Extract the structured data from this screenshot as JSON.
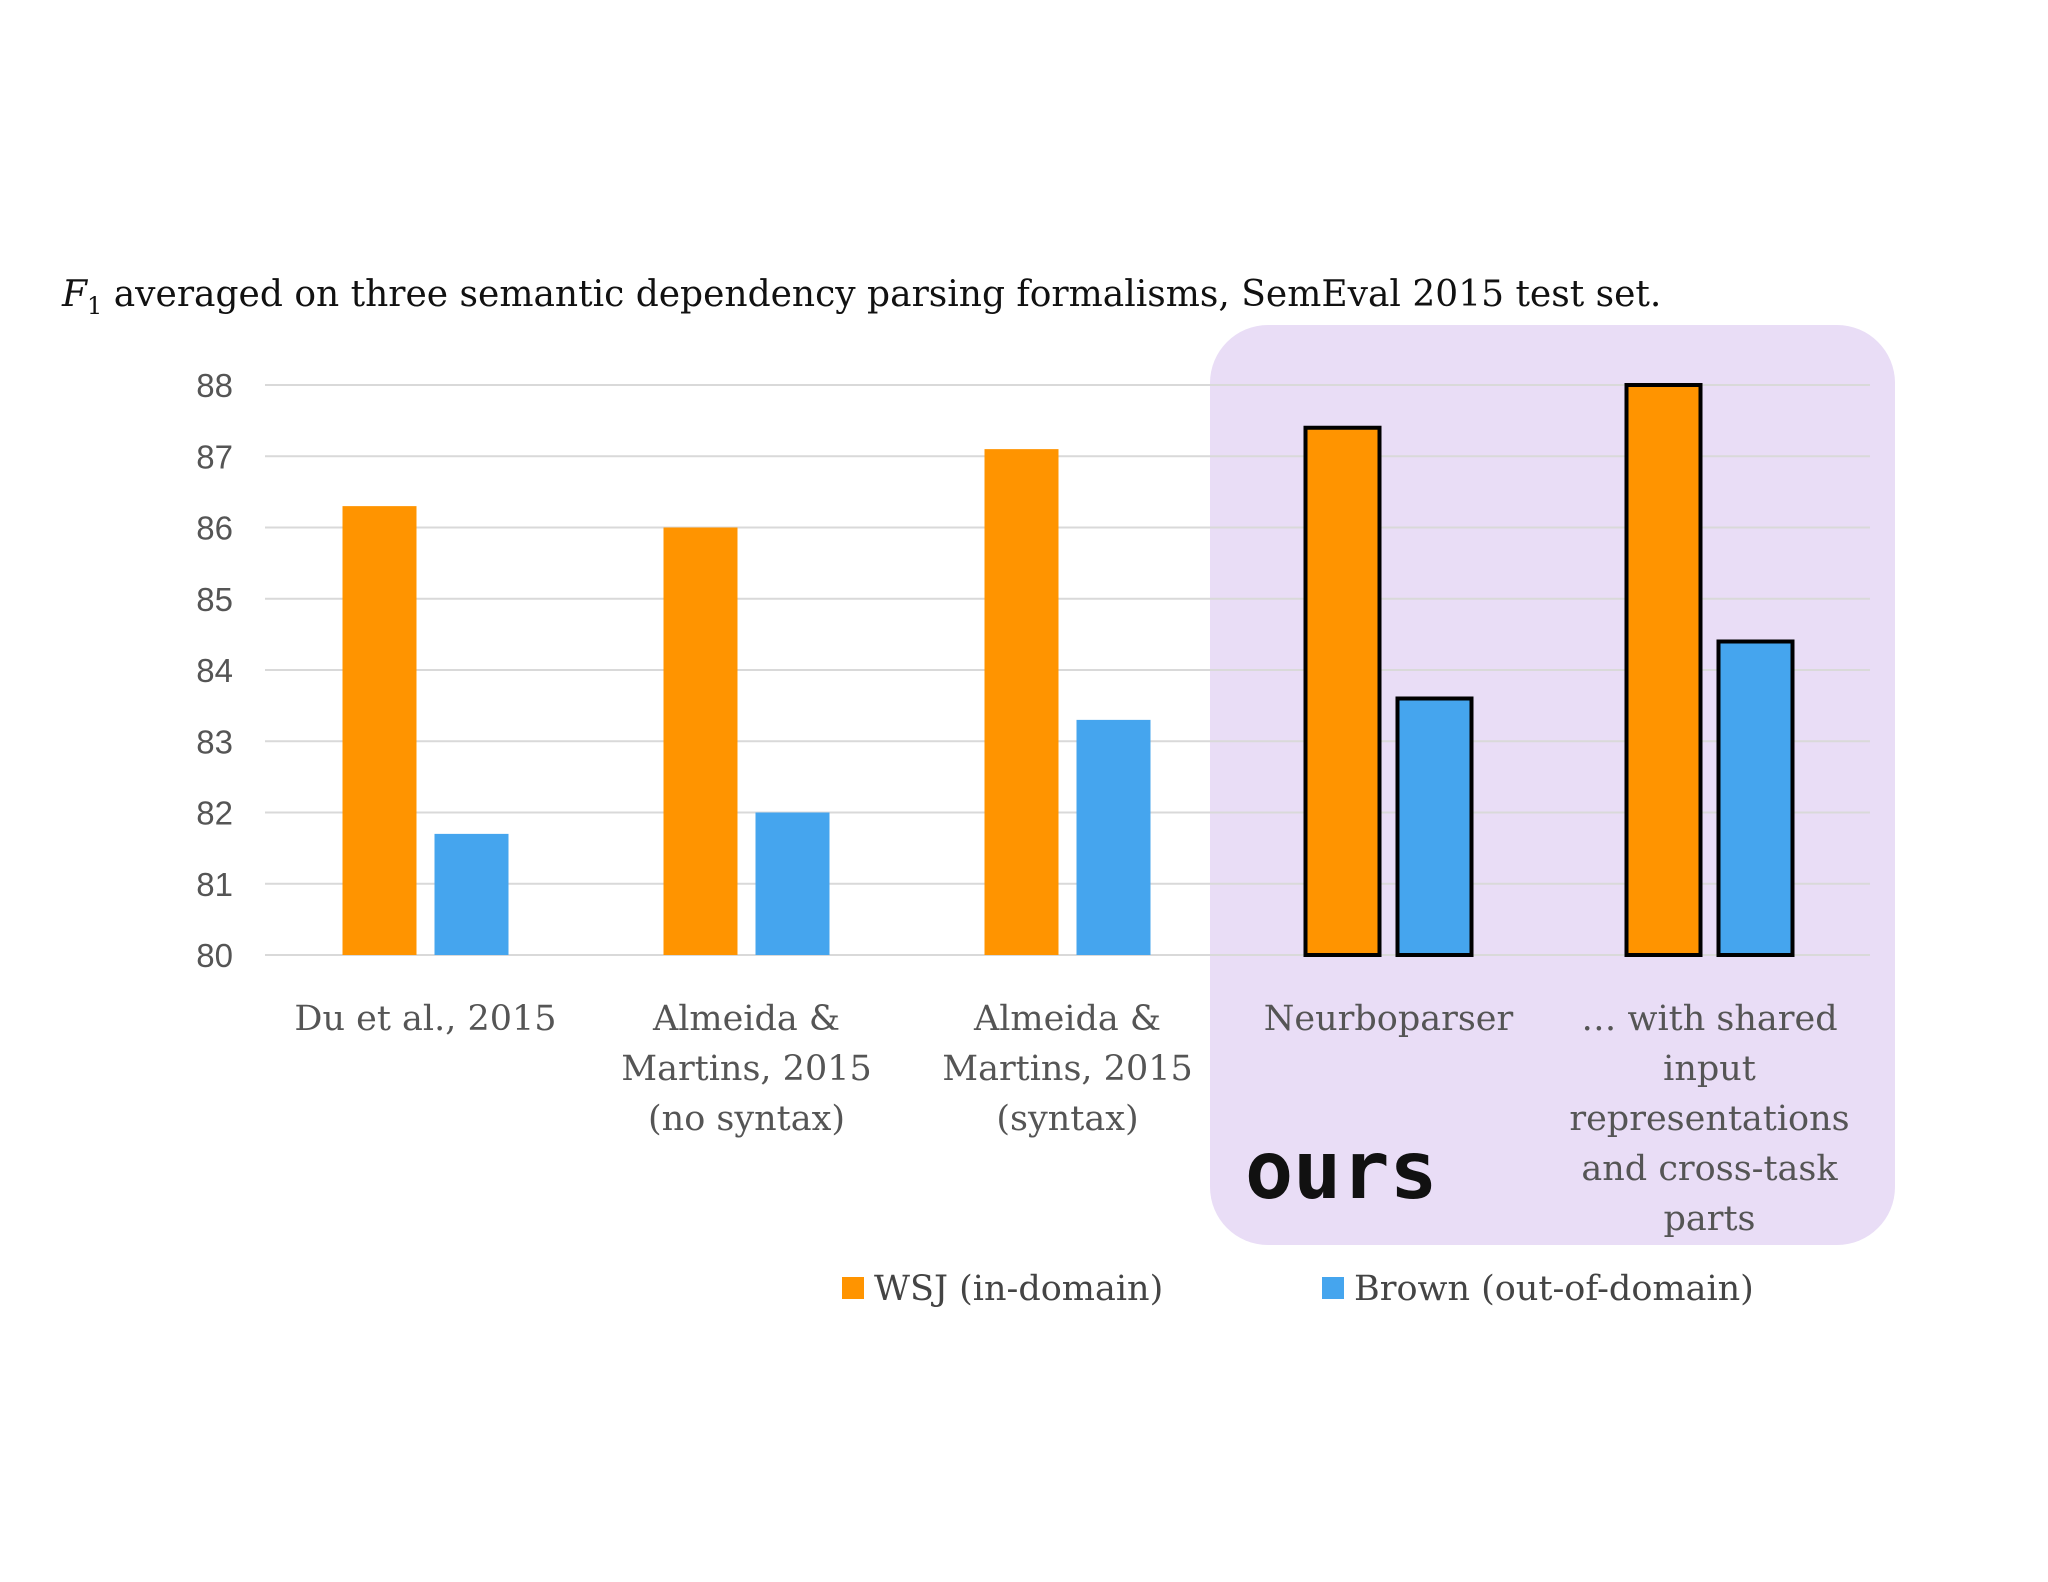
{
  "chart_data": {
    "type": "bar",
    "title": "F1 averaged on three semantic dependency parsing formalisms, SemEval 2015 test set.",
    "title_symbol": "F",
    "title_subscript": "1",
    "title_rest": " averaged on three semantic dependency parsing formalisms, SemEval 2015 test set.",
    "xlabel": "",
    "ylabel": "",
    "ylim": [
      80,
      88
    ],
    "yticks": [
      80,
      81,
      82,
      83,
      84,
      85,
      86,
      87,
      88
    ],
    "grid": true,
    "categories": [
      [
        "Du et al., 2015"
      ],
      [
        "Almeida &",
        "Martins, 2015",
        "(no syntax)"
      ],
      [
        "Almeida &",
        "Martins, 2015",
        "(syntax)"
      ],
      [
        "Neurboparser"
      ],
      [
        "… with shared",
        "input",
        "representations",
        "and cross-task",
        "parts"
      ]
    ],
    "series": [
      {
        "name": "WSJ (in-domain)",
        "color": "#ff9400",
        "values": [
          86.3,
          86.0,
          87.1,
          87.4,
          88.0
        ]
      },
      {
        "name": "Brown (out-of-domain)",
        "color": "#45a5ee",
        "values": [
          81.7,
          82.0,
          83.3,
          83.6,
          84.4
        ]
      }
    ],
    "highlight": {
      "label": "ours",
      "categories": [
        3,
        4
      ],
      "color": "#e9ddf6"
    },
    "legend_position": "bottom"
  }
}
